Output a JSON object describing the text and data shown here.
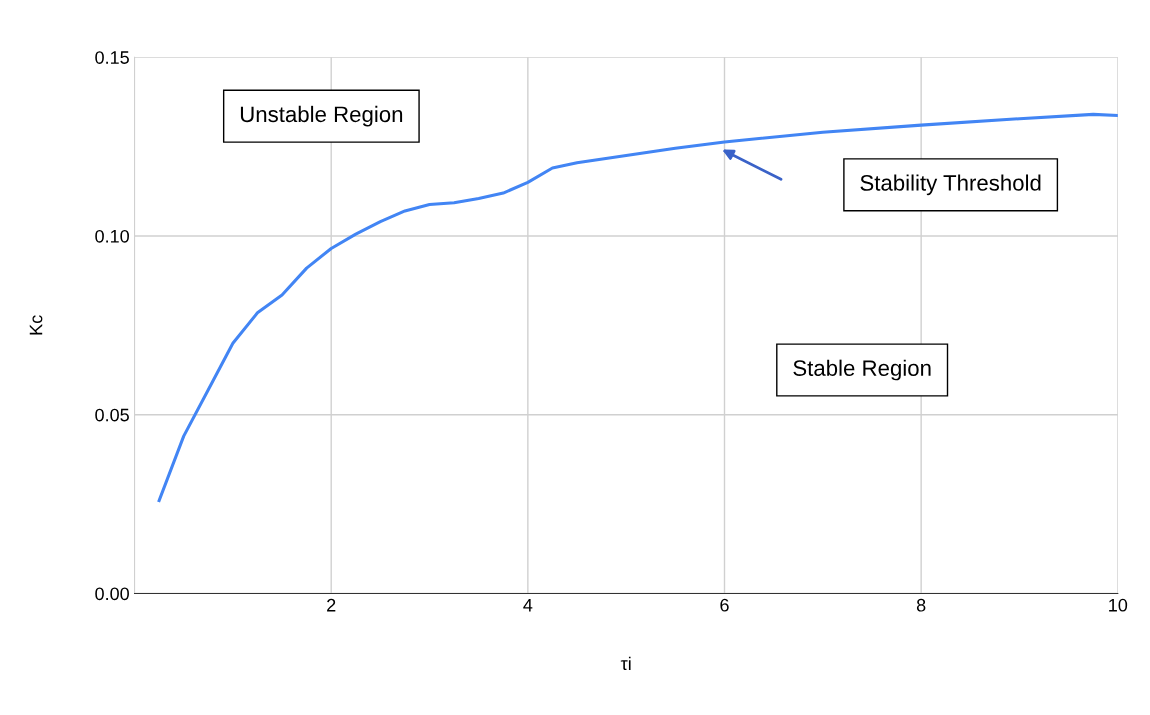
{
  "chart_data": {
    "type": "line",
    "xlabel": "τi",
    "ylabel": "Kc",
    "x": [
      0.25,
      0.5,
      0.75,
      1.0,
      1.25,
      1.5,
      1.75,
      2.0,
      2.25,
      2.5,
      2.75,
      3.0,
      3.25,
      3.5,
      3.75,
      4.0,
      4.25,
      4.5,
      5.0,
      5.5,
      6.0,
      7.0,
      8.0,
      9.0,
      9.75,
      10.0
    ],
    "series": [
      {
        "color": "#4285f4",
        "values": [
          0.026,
          0.044,
          0.057,
          0.07,
          0.0785,
          0.0835,
          0.091,
          0.0965,
          0.1005,
          0.104,
          0.107,
          0.1088,
          0.1093,
          0.1105,
          0.112,
          0.115,
          0.119,
          0.1205,
          0.1225,
          0.1245,
          0.1263,
          0.129,
          0.131,
          0.1328,
          0.134,
          0.1337
        ]
      }
    ],
    "xlim": [
      0,
      10
    ],
    "xticks": [
      2,
      4,
      6,
      8,
      10
    ],
    "ylim": [
      0,
      0.15
    ],
    "yticks": [
      {
        "value": 0,
        "label": "0.00"
      },
      {
        "value": 0.05,
        "label": "0.05"
      },
      {
        "value": 0.1,
        "label": "0.10"
      },
      {
        "value": 0.15,
        "label": "0.15"
      }
    ],
    "grid": true,
    "marker": "none",
    "line_style": "solid",
    "legend": false,
    "annotations": [
      "Unstable Region",
      "Stable Region",
      "Stability Threshold"
    ]
  }
}
